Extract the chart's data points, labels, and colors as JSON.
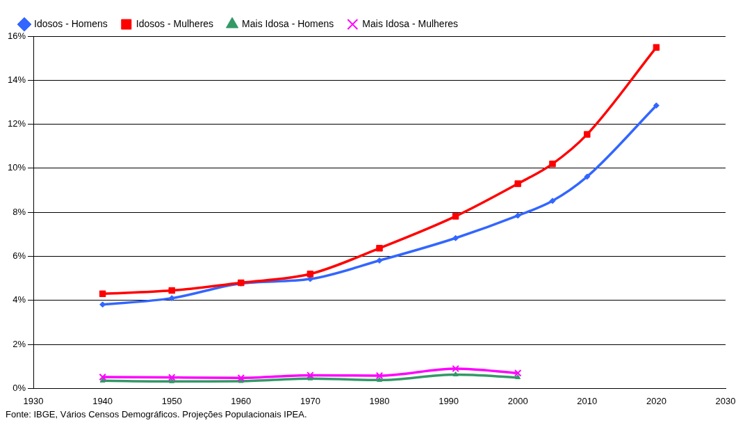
{
  "chart_data": {
    "type": "line",
    "x": [
      1940,
      1950,
      1960,
      1970,
      1980,
      1991,
      2000,
      2005,
      2010,
      2020
    ],
    "series": [
      {
        "name": "Idosos - Homens",
        "color": "#3366ff",
        "marker": "diamond",
        "values": [
          3.81,
          4.1,
          4.77,
          4.97,
          5.81,
          6.83,
          7.85,
          8.52,
          9.62,
          12.85
        ]
      },
      {
        "name": "Idosos - Mulheres",
        "color": "#ff0000",
        "marker": "square",
        "values": [
          4.3,
          4.45,
          4.8,
          5.2,
          6.37,
          7.82,
          9.3,
          10.2,
          11.54,
          15.49
        ]
      },
      {
        "name": "Mais Idosa - Homens",
        "color": "#339966",
        "marker": "triangle",
        "x": [
          1940,
          1950,
          1960,
          1970,
          1980,
          1991,
          2000
        ],
        "values": [
          0.35,
          0.32,
          0.33,
          0.45,
          0.38,
          0.63,
          0.5
        ]
      },
      {
        "name": "Mais Idosa - Mulheres",
        "color": "#ff00ff",
        "marker": "cross",
        "x": [
          1940,
          1950,
          1960,
          1970,
          1980,
          1991,
          2000
        ],
        "values": [
          0.52,
          0.5,
          0.48,
          0.6,
          0.58,
          0.9,
          0.7
        ]
      }
    ],
    "xlim": [
      1930,
      2030
    ],
    "xticks": [
      1930,
      1940,
      1950,
      1960,
      1970,
      1980,
      1990,
      2000,
      2010,
      2020,
      2030
    ],
    "ylim": [
      0,
      16
    ],
    "yticks": [
      {
        "value": 0,
        "label": "0%"
      },
      {
        "value": 2,
        "label": "2%"
      },
      {
        "value": 4,
        "label": "4%"
      },
      {
        "value": 6,
        "label": "6%"
      },
      {
        "value": 8,
        "label": "8%"
      },
      {
        "value": 10,
        "label": "10%"
      },
      {
        "value": 12,
        "label": "12%"
      },
      {
        "value": 14,
        "label": "14%"
      },
      {
        "value": 16,
        "label": "16%"
      }
    ],
    "grid": "y",
    "legend": "top left",
    "annotations": [
      "Fonte: IBGE, Vários Censos Demográficos. Projeções Populacionais IPEA."
    ]
  }
}
